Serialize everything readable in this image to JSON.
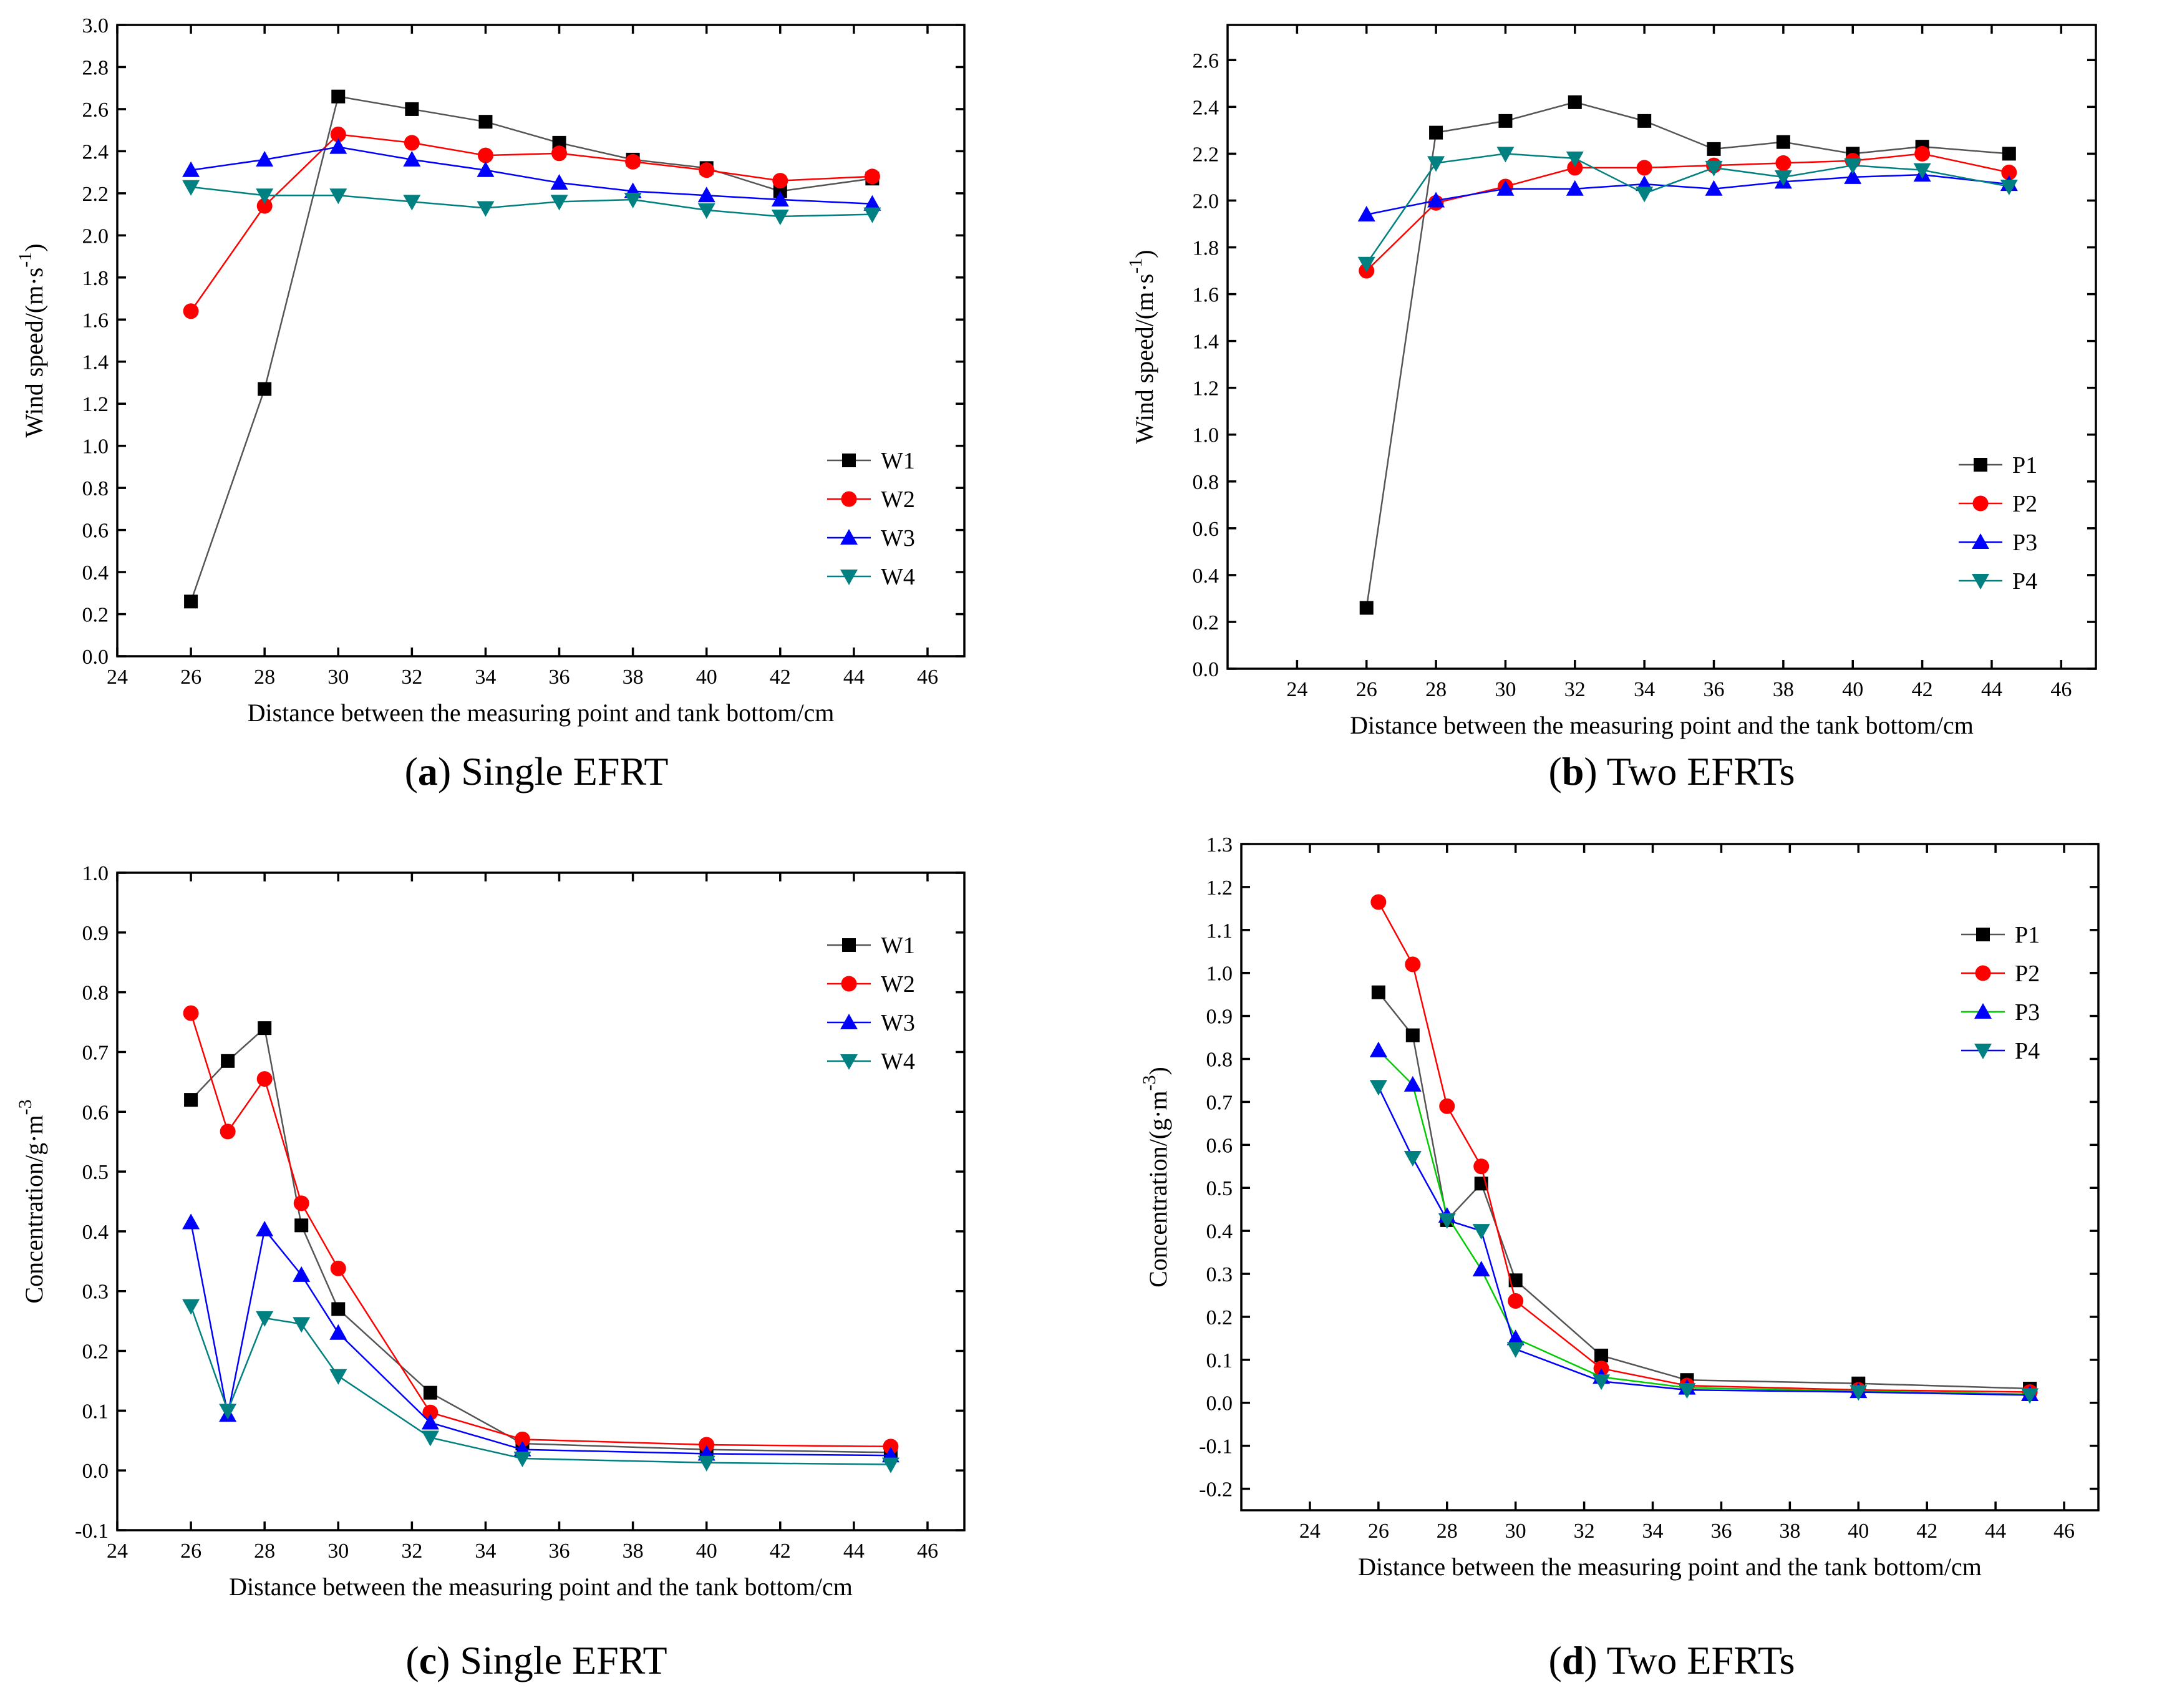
{
  "chart_data": [
    {
      "id": "a",
      "type": "line",
      "caption_letter": "a",
      "caption_text": "Single EFRT",
      "xlabel": "Distance between the measuring point and tank bottom/cm",
      "ylabel_main": "Wind speed/(m·s",
      "ylabel_sup": "-1",
      "ylabel_tail": ")",
      "xlim": [
        24,
        47
      ],
      "ylim": [
        0.0,
        3.0
      ],
      "xticks": [
        24,
        26,
        28,
        30,
        32,
        34,
        36,
        38,
        40,
        42,
        44,
        46
      ],
      "yticks": [
        0.0,
        0.2,
        0.4,
        0.6,
        0.8,
        1.0,
        1.2,
        1.4,
        1.6,
        1.8,
        2.0,
        2.2,
        2.4,
        2.6,
        2.8,
        3.0
      ],
      "ydecimals": 1,
      "legend_position": "bottom-right",
      "series": [
        {
          "name": "W1",
          "color": "#000000",
          "line": "#555555",
          "marker": "square",
          "x": [
            26,
            28,
            30,
            32,
            34,
            36,
            38,
            40,
            42,
            44.5
          ],
          "y": [
            0.26,
            1.27,
            2.66,
            2.6,
            2.54,
            2.44,
            2.36,
            2.32,
            2.21,
            2.27
          ]
        },
        {
          "name": "W2",
          "color": "#ff0000",
          "line": "#ff0000",
          "marker": "circle",
          "x": [
            26,
            28,
            30,
            32,
            34,
            36,
            38,
            40,
            42,
            44.5
          ],
          "y": [
            1.64,
            2.14,
            2.48,
            2.44,
            2.38,
            2.39,
            2.35,
            2.31,
            2.26,
            2.28
          ]
        },
        {
          "name": "W3",
          "color": "#0000ff",
          "line": "#0000ff",
          "marker": "triangle-up",
          "x": [
            26,
            28,
            30,
            32,
            34,
            36,
            38,
            40,
            42,
            44.5
          ],
          "y": [
            2.31,
            2.36,
            2.42,
            2.36,
            2.31,
            2.25,
            2.21,
            2.19,
            2.17,
            2.15
          ]
        },
        {
          "name": "W4",
          "color": "#008080",
          "line": "#008080",
          "marker": "triangle-down",
          "x": [
            26,
            28,
            30,
            32,
            34,
            36,
            38,
            40,
            42,
            44.5
          ],
          "y": [
            2.23,
            2.19,
            2.19,
            2.16,
            2.13,
            2.16,
            2.17,
            2.12,
            2.09,
            2.1
          ]
        }
      ]
    },
    {
      "id": "b",
      "type": "line",
      "caption_letter": "b",
      "caption_text": "Two EFRTs",
      "xlabel": "Distance between the measuring point and the tank bottom/cm",
      "ylabel_main": "Wind speed/(m·s",
      "ylabel_sup": "-1",
      "ylabel_tail": ")",
      "xlim": [
        22,
        47
      ],
      "ylim": [
        0.0,
        2.75
      ],
      "xticks": [
        24,
        26,
        28,
        30,
        32,
        34,
        36,
        38,
        40,
        42,
        44,
        46
      ],
      "yticks": [
        0.0,
        0.2,
        0.4,
        0.6,
        0.8,
        1.0,
        1.2,
        1.4,
        1.6,
        1.8,
        2.0,
        2.2,
        2.4,
        2.6
      ],
      "ydecimals": 1,
      "legend_position": "bottom-right",
      "series": [
        {
          "name": "P1",
          "color": "#000000",
          "line": "#555555",
          "marker": "square",
          "x": [
            26,
            28,
            30,
            32,
            34,
            36,
            38,
            40,
            42,
            44.5
          ],
          "y": [
            0.26,
            2.29,
            2.34,
            2.42,
            2.34,
            2.22,
            2.25,
            2.2,
            2.23,
            2.2
          ]
        },
        {
          "name": "P2",
          "color": "#ff0000",
          "line": "#ff0000",
          "marker": "circle",
          "x": [
            26,
            28,
            30,
            32,
            34,
            36,
            38,
            40,
            42,
            44.5
          ],
          "y": [
            1.7,
            1.99,
            2.06,
            2.14,
            2.14,
            2.15,
            2.16,
            2.17,
            2.2,
            2.12
          ]
        },
        {
          "name": "P3",
          "color": "#0000ff",
          "line": "#0000ff",
          "marker": "triangle-up",
          "x": [
            26,
            28,
            30,
            32,
            34,
            36,
            38,
            40,
            42,
            44.5
          ],
          "y": [
            1.94,
            2.0,
            2.05,
            2.05,
            2.07,
            2.05,
            2.08,
            2.1,
            2.11,
            2.07
          ]
        },
        {
          "name": "P4",
          "color": "#008080",
          "line": "#008080",
          "marker": "triangle-down",
          "x": [
            26,
            28,
            30,
            32,
            34,
            36,
            38,
            40,
            42,
            44.5
          ],
          "y": [
            1.73,
            2.16,
            2.2,
            2.18,
            2.03,
            2.14,
            2.1,
            2.15,
            2.13,
            2.06
          ]
        }
      ]
    },
    {
      "id": "c",
      "type": "line",
      "caption_letter": "c",
      "caption_text": "Single EFRT",
      "xlabel": "Distance between the measuring point and the tank bottom/cm",
      "ylabel_main": "Concentration/g·m",
      "ylabel_sup": "-3",
      "ylabel_tail": "",
      "xlim": [
        24,
        47
      ],
      "ylim": [
        -0.1,
        1.0
      ],
      "xticks": [
        24,
        26,
        28,
        30,
        32,
        34,
        36,
        38,
        40,
        42,
        44,
        46
      ],
      "yticks": [
        -0.1,
        0.0,
        0.1,
        0.2,
        0.3,
        0.4,
        0.5,
        0.6,
        0.7,
        0.8,
        0.9,
        1.0
      ],
      "ydecimals": 1,
      "legend_position": "top-right",
      "series": [
        {
          "name": "W1",
          "color": "#000000",
          "line": "#555555",
          "marker": "square",
          "x": [
            26,
            27,
            28,
            29,
            30,
            32.5,
            35,
            40,
            45
          ],
          "y": [
            0.62,
            0.685,
            0.74,
            0.41,
            0.27,
            0.13,
            0.045,
            0.035,
            0.03
          ]
        },
        {
          "name": "W2",
          "color": "#ff0000",
          "line": "#ff0000",
          "marker": "circle",
          "x": [
            26,
            27,
            28,
            29,
            30,
            32.5,
            35,
            40,
            45
          ],
          "y": [
            0.765,
            0.567,
            0.655,
            0.447,
            0.338,
            0.097,
            0.052,
            0.043,
            0.04
          ]
        },
        {
          "name": "W3",
          "color": "#0000ff",
          "line": "#0000ff",
          "marker": "triangle-up",
          "x": [
            26,
            27,
            28,
            29,
            30,
            32.5,
            35,
            40,
            45
          ],
          "y": [
            0.415,
            0.093,
            0.403,
            0.327,
            0.23,
            0.08,
            0.035,
            0.028,
            0.025
          ]
        },
        {
          "name": "W4",
          "color": "#008080",
          "line": "#008080",
          "marker": "triangle-down",
          "x": [
            26,
            27,
            28,
            29,
            30,
            32.5,
            35,
            40,
            45
          ],
          "y": [
            0.275,
            0.1,
            0.255,
            0.245,
            0.158,
            0.055,
            0.02,
            0.013,
            0.01
          ]
        }
      ]
    },
    {
      "id": "d",
      "type": "line",
      "caption_letter": "d",
      "caption_text": "Two EFRTs",
      "xlabel": "Distance between the measuring point and the tank bottom/cm",
      "ylabel_main": "Concentration/(g·m",
      "ylabel_sup": "-3",
      "ylabel_tail": ")",
      "xlim": [
        22,
        47
      ],
      "ylim": [
        -0.25,
        1.3
      ],
      "xticks": [
        24,
        26,
        28,
        30,
        32,
        34,
        36,
        38,
        40,
        42,
        44,
        46
      ],
      "yticks": [
        -0.2,
        -0.1,
        0.0,
        0.1,
        0.2,
        0.3,
        0.4,
        0.5,
        0.6,
        0.7,
        0.8,
        0.9,
        1.0,
        1.1,
        1.2,
        1.3
      ],
      "ydecimals": 1,
      "legend_position": "top-right",
      "series": [
        {
          "name": "P1",
          "color": "#000000",
          "line": "#555555",
          "marker": "square",
          "x": [
            26,
            27,
            28,
            29,
            30,
            32.5,
            35,
            40,
            45
          ],
          "y": [
            0.955,
            0.855,
            0.425,
            0.51,
            0.285,
            0.11,
            0.053,
            0.045,
            0.033
          ]
        },
        {
          "name": "P2",
          "color": "#ff0000",
          "line": "#ff0000",
          "marker": "circle",
          "x": [
            26,
            27,
            28,
            29,
            30,
            32.5,
            35,
            40,
            45
          ],
          "y": [
            1.165,
            1.02,
            0.69,
            0.55,
            0.237,
            0.08,
            0.04,
            0.03,
            0.025
          ]
        },
        {
          "name": "P3",
          "color": "#0000ff",
          "line": "#00cc00",
          "marker": "triangle-up",
          "x": [
            26,
            27,
            28,
            29,
            30,
            32.5,
            35,
            40,
            45
          ],
          "y": [
            0.82,
            0.74,
            0.435,
            0.31,
            0.15,
            0.06,
            0.035,
            0.027,
            0.02
          ]
        },
        {
          "name": "P4",
          "color": "#008080",
          "line": "#0000ff",
          "marker": "triangle-down",
          "x": [
            26,
            27,
            28,
            29,
            30,
            32.5,
            35,
            40,
            45
          ],
          "y": [
            0.735,
            0.57,
            0.425,
            0.4,
            0.125,
            0.05,
            0.03,
            0.025,
            0.018
          ]
        }
      ]
    }
  ]
}
